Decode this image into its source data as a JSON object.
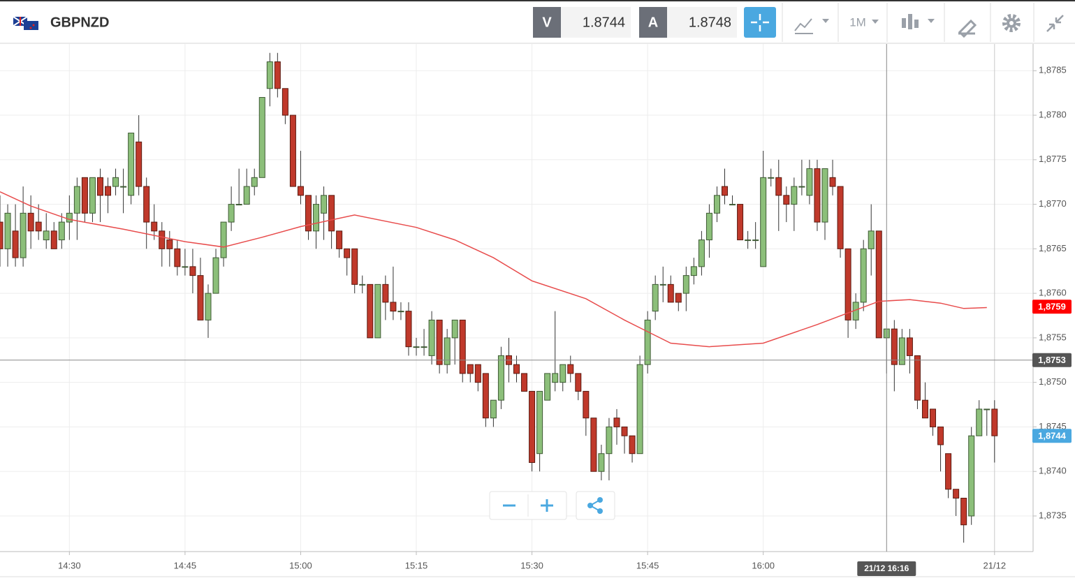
{
  "header": {
    "symbol": "GBPNZD",
    "bid_label": "V",
    "bid": "1.8744",
    "ask_label": "A",
    "ask": "1.8748",
    "timeframe": "1M"
  },
  "chart_data": {
    "type": "candlestick",
    "x": [
      "14:21",
      "14:22",
      "14:23",
      "14:24",
      "14:25",
      "14:26",
      "14:27",
      "14:28",
      "14:29",
      "14:30",
      "14:31",
      "14:32",
      "14:33",
      "14:34",
      "14:35",
      "14:36",
      "14:37",
      "14:38",
      "14:39",
      "14:40",
      "14:41",
      "14:42",
      "14:43",
      "14:44",
      "14:45",
      "14:46",
      "14:47",
      "14:48",
      "14:49",
      "14:50",
      "14:51",
      "14:52",
      "14:53",
      "14:54",
      "14:55",
      "14:56",
      "14:57",
      "14:58",
      "14:59",
      "15:00",
      "15:01",
      "15:02",
      "15:03",
      "15:04",
      "15:05",
      "15:06",
      "15:07",
      "15:08",
      "15:09",
      "15:10",
      "15:11",
      "15:12",
      "15:13",
      "15:14",
      "15:15",
      "15:16",
      "15:17",
      "15:18",
      "15:19",
      "15:20",
      "15:21",
      "15:22",
      "15:23",
      "15:24",
      "15:25",
      "15:26",
      "15:27",
      "15:28",
      "15:29",
      "15:30",
      "15:31",
      "15:32",
      "15:33",
      "15:34",
      "15:35",
      "15:36",
      "15:37",
      "15:38",
      "15:39",
      "15:40",
      "15:41",
      "15:42",
      "15:43",
      "15:44",
      "15:45",
      "15:46",
      "15:47",
      "15:48",
      "15:49",
      "15:50",
      "15:51",
      "15:52",
      "15:53",
      "15:54",
      "15:55",
      "15:56",
      "15:57",
      "15:58",
      "15:59",
      "16:00",
      "16:01",
      "16:02",
      "16:03",
      "16:04",
      "16:05",
      "16:06",
      "16:07",
      "16:08",
      "16:09",
      "16:10",
      "16:11",
      "16:12",
      "16:13",
      "16:14",
      "16:15",
      "16:16",
      "16:17",
      "16:18",
      "16:19",
      "16:20",
      "16:21",
      "16:22",
      "16:23",
      "16:24",
      "16:25",
      "16:26",
      "16:27",
      "16:28",
      "16:29",
      "16:30"
    ],
    "ohlc": [
      [
        1.8768,
        1.8771,
        1.8763,
        1.8765
      ],
      [
        1.8765,
        1.877,
        1.8763,
        1.8769
      ],
      [
        1.8767,
        1.877,
        1.8763,
        1.8764
      ],
      [
        1.8764,
        1.8772,
        1.8763,
        1.8769
      ],
      [
        1.8769,
        1.8771,
        1.8765,
        1.8767
      ],
      [
        1.8768,
        1.877,
        1.8766,
        1.8767
      ],
      [
        1.8766,
        1.8769,
        1.8765,
        1.8767
      ],
      [
        1.8767,
        1.8768,
        1.8765,
        1.8765
      ],
      [
        1.8766,
        1.8769,
        1.8765,
        1.8768
      ],
      [
        1.8768,
        1.8771,
        1.8766,
        1.8769
      ],
      [
        1.8769,
        1.8773,
        1.8766,
        1.8772
      ],
      [
        1.8773,
        1.8773,
        1.8768,
        1.8769
      ],
      [
        1.8769,
        1.8773,
        1.8768,
        1.8773
      ],
      [
        1.8773,
        1.8774,
        1.8768,
        1.8771
      ],
      [
        1.8772,
        1.8773,
        1.8769,
        1.8771
      ],
      [
        1.8772,
        1.8774,
        1.8771,
        1.8773
      ],
      [
        1.8772,
        1.8774,
        1.8769,
        1.8772
      ],
      [
        1.8771,
        1.8778,
        1.877,
        1.8778
      ],
      [
        1.8777,
        1.878,
        1.8771,
        1.8772
      ],
      [
        1.8772,
        1.8773,
        1.8765,
        1.8768
      ],
      [
        1.8768,
        1.877,
        1.8766,
        1.8767
      ],
      [
        1.8767,
        1.8768,
        1.8763,
        1.8765
      ],
      [
        1.8766,
        1.8767,
        1.8763,
        1.8765
      ],
      [
        1.8765,
        1.8766,
        1.8762,
        1.8763
      ],
      [
        1.8763,
        1.8765,
        1.8762,
        1.8763
      ],
      [
        1.8763,
        1.8765,
        1.876,
        1.8762
      ],
      [
        1.8762,
        1.8764,
        1.8757,
        1.8757
      ],
      [
        1.8757,
        1.8761,
        1.8755,
        1.876
      ],
      [
        1.876,
        1.8765,
        1.876,
        1.8764
      ],
      [
        1.8764,
        1.8768,
        1.8763,
        1.8768
      ],
      [
        1.8768,
        1.8772,
        1.8767,
        1.877
      ],
      [
        1.877,
        1.8774,
        1.877,
        1.877
      ],
      [
        1.877,
        1.8774,
        1.877,
        1.8772
      ],
      [
        1.8772,
        1.8774,
        1.8771,
        1.8773
      ],
      [
        1.8773,
        1.8782,
        1.8773,
        1.8782
      ],
      [
        1.8783,
        1.8787,
        1.8781,
        1.8786
      ],
      [
        1.8786,
        1.8787,
        1.8782,
        1.8783
      ],
      [
        1.8783,
        1.8783,
        1.8779,
        1.878
      ],
      [
        1.878,
        1.878,
        1.8772,
        1.8772
      ],
      [
        1.8772,
        1.8776,
        1.877,
        1.8771
      ],
      [
        1.8771,
        1.8771,
        1.8766,
        1.8767
      ],
      [
        1.8767,
        1.8771,
        1.8765,
        1.877
      ],
      [
        1.8769,
        1.8772,
        1.8766,
        1.8771
      ],
      [
        1.8771,
        1.8771,
        1.8765,
        1.8767
      ],
      [
        1.8767,
        1.8767,
        1.8764,
        1.8765
      ],
      [
        1.8765,
        1.8765,
        1.8762,
        1.8764
      ],
      [
        1.8765,
        1.8765,
        1.876,
        1.8761
      ],
      [
        1.8761,
        1.8762,
        1.876,
        1.8761
      ],
      [
        1.8761,
        1.8761,
        1.8755,
        1.8755
      ],
      [
        1.8755,
        1.8761,
        1.8755,
        1.8761
      ],
      [
        1.8761,
        1.8762,
        1.8757,
        1.8759
      ],
      [
        1.8759,
        1.8763,
        1.8757,
        1.8758
      ],
      [
        1.8758,
        1.8759,
        1.8757,
        1.8758
      ],
      [
        1.8758,
        1.8759,
        1.8753,
        1.8754
      ],
      [
        1.8754,
        1.8755,
        1.8753,
        1.8754
      ],
      [
        1.8754,
        1.8756,
        1.8753,
        1.8754
      ],
      [
        1.8753,
        1.8758,
        1.8752,
        1.8757
      ],
      [
        1.8757,
        1.8757,
        1.8751,
        1.8752
      ],
      [
        1.8752,
        1.8756,
        1.8751,
        1.8755
      ],
      [
        1.8755,
        1.8757,
        1.8752,
        1.8757
      ],
      [
        1.8757,
        1.8757,
        1.875,
        1.8751
      ],
      [
        1.8752,
        1.8752,
        1.875,
        1.8751
      ],
      [
        1.8752,
        1.8752,
        1.8749,
        1.875
      ],
      [
        1.8751,
        1.8751,
        1.8745,
        1.8746
      ],
      [
        1.8746,
        1.8748,
        1.8745,
        1.8748
      ],
      [
        1.8748,
        1.8754,
        1.8747,
        1.8753
      ],
      [
        1.8753,
        1.8755,
        1.875,
        1.8752
      ],
      [
        1.8752,
        1.8753,
        1.875,
        1.8751
      ],
      [
        1.8751,
        1.8751,
        1.8749,
        1.8749
      ],
      [
        1.8749,
        1.8749,
        1.874,
        1.8741
      ],
      [
        1.8742,
        1.8749,
        1.874,
        1.8749
      ],
      [
        1.8748,
        1.8751,
        1.8748,
        1.8751
      ],
      [
        1.875,
        1.8758,
        1.8749,
        1.8751
      ],
      [
        1.875,
        1.8752,
        1.8749,
        1.8752
      ],
      [
        1.8752,
        1.8753,
        1.875,
        1.8751
      ],
      [
        1.8751,
        1.8751,
        1.8748,
        1.8749
      ],
      [
        1.8749,
        1.8749,
        1.8744,
        1.8746
      ],
      [
        1.8746,
        1.8746,
        1.874,
        1.874
      ],
      [
        1.874,
        1.8743,
        1.8739,
        1.8742
      ],
      [
        1.8742,
        1.8746,
        1.8739,
        1.8745
      ],
      [
        1.8746,
        1.8747,
        1.8743,
        1.8745
      ],
      [
        1.8745,
        1.8745,
        1.8742,
        1.8744
      ],
      [
        1.8744,
        1.8744,
        1.8741,
        1.8742
      ],
      [
        1.8742,
        1.8753,
        1.8742,
        1.8752
      ],
      [
        1.8752,
        1.8758,
        1.8751,
        1.8757
      ],
      [
        1.8758,
        1.8762,
        1.8757,
        1.8761
      ],
      [
        1.8761,
        1.8763,
        1.8759,
        1.8761
      ],
      [
        1.8761,
        1.8762,
        1.8759,
        1.8759
      ],
      [
        1.876,
        1.876,
        1.8758,
        1.8759
      ],
      [
        1.876,
        1.8763,
        1.8758,
        1.8762
      ],
      [
        1.8762,
        1.8764,
        1.8761,
        1.8763
      ],
      [
        1.8763,
        1.8767,
        1.8762,
        1.8766
      ],
      [
        1.8766,
        1.877,
        1.8764,
        1.8769
      ],
      [
        1.8769,
        1.8772,
        1.8768,
        1.8771
      ],
      [
        1.8772,
        1.8774,
        1.877,
        1.8771
      ],
      [
        1.877,
        1.8771,
        1.877,
        1.877
      ],
      [
        1.877,
        1.877,
        1.8766,
        1.8766
      ],
      [
        1.8766,
        1.8767,
        1.8765,
        1.8766
      ],
      [
        1.8766,
        1.8768,
        1.8765,
        1.8766
      ],
      [
        1.8763,
        1.8776,
        1.8763,
        1.8773
      ],
      [
        1.8773,
        1.8774,
        1.8772,
        1.8773
      ],
      [
        1.8773,
        1.8775,
        1.8767,
        1.8771
      ],
      [
        1.8771,
        1.8772,
        1.8768,
        1.877
      ],
      [
        1.877,
        1.8773,
        1.8767,
        1.8772
      ],
      [
        1.8772,
        1.8775,
        1.8771,
        1.8772
      ],
      [
        1.8771,
        1.8775,
        1.877,
        1.8774
      ],
      [
        1.8774,
        1.8775,
        1.8767,
        1.8768
      ],
      [
        1.8768,
        1.8774,
        1.8766,
        1.8774
      ],
      [
        1.8773,
        1.8775,
        1.8771,
        1.8772
      ],
      [
        1.8772,
        1.8772,
        1.8764,
        1.8765
      ],
      [
        1.8765,
        1.8765,
        1.8755,
        1.8757
      ],
      [
        1.8757,
        1.876,
        1.8756,
        1.8759
      ],
      [
        1.8759,
        1.8766,
        1.8758,
        1.8765
      ],
      [
        1.8765,
        1.877,
        1.8762,
        1.8767
      ],
      [
        1.8767,
        1.8767,
        1.8755,
        1.8755
      ],
      [
        1.8755,
        1.8756,
        1.8751,
        1.8756
      ],
      [
        1.8756,
        1.8757,
        1.8749,
        1.8752
      ],
      [
        1.8752,
        1.8756,
        1.8752,
        1.8755
      ],
      [
        1.8755,
        1.8756,
        1.8751,
        1.8753
      ],
      [
        1.8753,
        1.8753,
        1.8747,
        1.8748
      ],
      [
        1.8748,
        1.875,
        1.8746,
        1.8746
      ],
      [
        1.8747,
        1.8747,
        1.8744,
        1.8745
      ],
      [
        1.8745,
        1.8745,
        1.874,
        1.8743
      ],
      [
        1.8742,
        1.8742,
        1.8737,
        1.8738
      ],
      [
        1.8738,
        1.8738,
        1.8735,
        1.8737
      ],
      [
        1.8737,
        1.8737,
        1.8732,
        1.8734
      ],
      [
        1.8735,
        1.8745,
        1.8734,
        1.8744
      ],
      [
        1.8744,
        1.8748,
        1.8744,
        1.8747
      ],
      [
        1.8747,
        1.8747,
        1.8744,
        1.8747
      ],
      [
        1.8747,
        1.8748,
        1.8741,
        1.8744
      ]
    ],
    "up_color": "#8cbf7a",
    "down_color": "#c0392b",
    "ma": {
      "color": "#e84c4c",
      "x": [
        "14:21",
        "14:25",
        "14:30",
        "14:37",
        "14:45",
        "14:50",
        "14:55",
        "15:00",
        "15:07",
        "15:15",
        "15:20",
        "15:25",
        "15:30",
        "15:37",
        "15:42",
        "15:45",
        "15:48",
        "15:53",
        "16:00",
        "16:07",
        "16:11",
        "16:15",
        "16:19",
        "16:23",
        "16:26",
        "16:29"
      ],
      "values": [
        1.87714,
        1.87698,
        1.87683,
        1.87672,
        1.87658,
        1.87652,
        1.87663,
        1.87675,
        1.87688,
        1.87674,
        1.8766,
        1.8764,
        1.87614,
        1.87594,
        1.8757,
        1.87557,
        1.87544,
        1.8754,
        1.87544,
        1.87565,
        1.87578,
        1.87591,
        1.87593,
        1.87589,
        1.87583,
        1.87584
      ]
    },
    "xlim": [
      "14:21",
      "16:35"
    ],
    "xticks": [
      "14:30",
      "14:45",
      "15:00",
      "15:15",
      "15:30",
      "15:45",
      "16:00",
      {
        "value": "16:30",
        "label": "21/12"
      }
    ],
    "ylim": [
      1.8731,
      1.8788
    ],
    "yticks": [
      {
        "value": 1.8735,
        "label": "1,8735"
      },
      {
        "value": 1.874,
        "label": "1,8740"
      },
      {
        "value": 1.8745,
        "label": "1,8745"
      },
      {
        "value": 1.875,
        "label": "1,8750"
      },
      {
        "value": 1.8755,
        "label": "1,8755"
      },
      {
        "value": 1.876,
        "label": "1,8760"
      },
      {
        "value": 1.8765,
        "label": "1,8765"
      },
      {
        "value": 1.877,
        "label": "1,8770"
      },
      {
        "value": 1.8775,
        "label": "1,8775"
      },
      {
        "value": 1.878,
        "label": "1,8780"
      },
      {
        "value": 1.8785,
        "label": "1,8785"
      }
    ],
    "grid": true,
    "price_labels": [
      {
        "value": 1.87585,
        "label": "1,8759",
        "color": "#ff0000"
      },
      {
        "value": 1.8744,
        "label": "1,8744",
        "color": "#4aa8e0"
      }
    ],
    "crosshair": {
      "x": "16:16",
      "x_label": "21/12 16:16",
      "y": {
        "value": 1.87525,
        "label": "1,8753"
      }
    }
  }
}
